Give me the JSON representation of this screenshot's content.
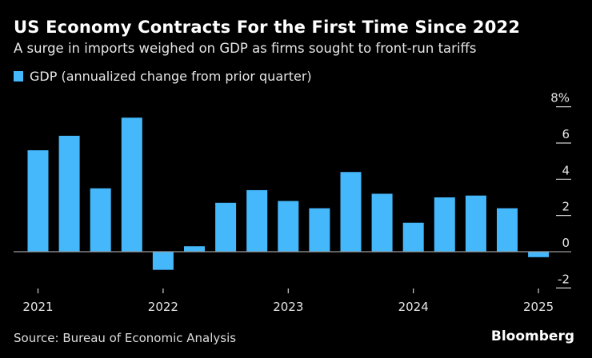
{
  "title": "US Economy Contracts For the First Time Since 2022",
  "subtitle": "A surge in imports weighed on GDP as firms sought to front-run tariffs",
  "source": "Source: Bureau of Economic Analysis",
  "brand": "Bloomberg",
  "chart_data": {
    "type": "bar",
    "categories": [
      "2021 Q1",
      "2021 Q2",
      "2021 Q3",
      "2021 Q4",
      "2022 Q1",
      "2022 Q2",
      "2022 Q3",
      "2022 Q4",
      "2023 Q1",
      "2023 Q2",
      "2023 Q3",
      "2023 Q4",
      "2024 Q1",
      "2024 Q2",
      "2024 Q3",
      "2024 Q4",
      "2025 Q1"
    ],
    "series": [
      {
        "name": "GDP (annualized change from prior quarter)",
        "color": "#45b8fb",
        "values": [
          5.6,
          6.4,
          3.5,
          7.4,
          -1.0,
          0.3,
          2.7,
          3.4,
          2.8,
          2.4,
          4.4,
          3.2,
          1.6,
          3.0,
          3.1,
          2.4,
          -0.3
        ]
      }
    ],
    "x_tick_labels": [
      "2021",
      "2022",
      "2023",
      "2024",
      "2025"
    ],
    "y_tick_labels": [
      "8%",
      "6",
      "4",
      "2",
      "0",
      "-2"
    ],
    "y_ticks": [
      8,
      6,
      4,
      2,
      0,
      -2
    ],
    "ylim": [
      -2,
      8
    ],
    "y_axis_position": "right",
    "grid": false,
    "legend_position": "top-left",
    "background": "#000000"
  }
}
